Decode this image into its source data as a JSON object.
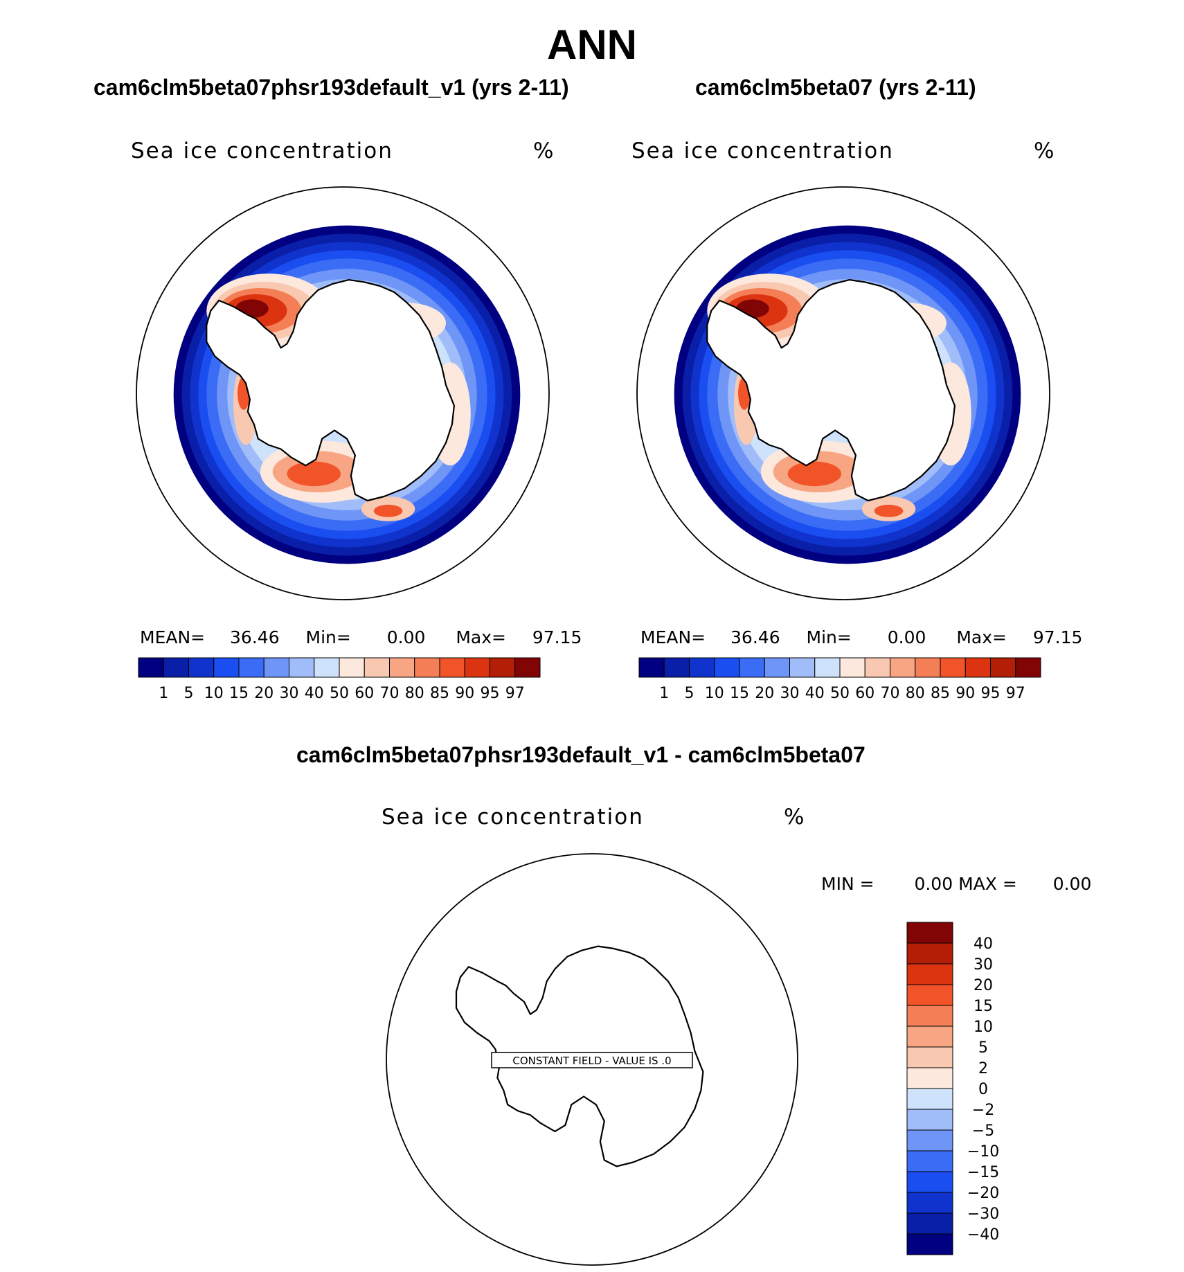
{
  "figure": {
    "title": "ANN",
    "panels": [
      {
        "title": "cam6clm5beta07phsr193default_v1 (yrs 2-11)",
        "variable": "Sea ice concentration",
        "units": "%",
        "stats": {
          "mean_label": "MEAN=",
          "mean": "36.46",
          "min_label": "Min=",
          "min": "0.00",
          "max_label": "Max=",
          "max": "97.15"
        }
      },
      {
        "title": "cam6clm5beta07 (yrs 2-11)",
        "variable": "Sea ice concentration",
        "units": "%",
        "stats": {
          "mean_label": "MEAN=",
          "mean": "36.46",
          "min_label": "Min=",
          "min": "0.00",
          "max_label": "Max=",
          "max": "97.15"
        }
      }
    ],
    "difference": {
      "title": "cam6clm5beta07phsr193default_v1 - cam6clm5beta07",
      "variable": "Sea ice concentration",
      "units": "%",
      "min_label": "MIN =",
      "min": "0.00",
      "max_label": "MAX =",
      "max": "0.00",
      "constant_field_text": "CONSTANT FIELD - VALUE IS .0"
    }
  },
  "chart_data": [
    {
      "type": "heatmap",
      "title": "cam6clm5beta07phsr193default_v1 (yrs 2-11)",
      "variable": "Sea ice concentration",
      "units": "%",
      "projection": "south polar stereographic",
      "stats": {
        "mean": 36.46,
        "min": 0.0,
        "max": 97.15
      },
      "levels": [
        1,
        5,
        10,
        15,
        20,
        30,
        40,
        50,
        60,
        70,
        80,
        85,
        90,
        95,
        97
      ],
      "colors": [
        "#000080",
        "#0a1fa8",
        "#0f33cc",
        "#1a4ef0",
        "#3b6cf5",
        "#6f95f7",
        "#a0bdf9",
        "#cfe2fb",
        "#fce8dc",
        "#f9c8b0",
        "#f7a582",
        "#f47f56",
        "#f2542a",
        "#dc3410",
        "#b21e06",
        "#820505"
      ]
    },
    {
      "type": "heatmap",
      "title": "cam6clm5beta07 (yrs 2-11)",
      "variable": "Sea ice concentration",
      "units": "%",
      "projection": "south polar stereographic",
      "stats": {
        "mean": 36.46,
        "min": 0.0,
        "max": 97.15
      },
      "levels": [
        1,
        5,
        10,
        15,
        20,
        30,
        40,
        50,
        60,
        70,
        80,
        85,
        90,
        95,
        97
      ],
      "colors": [
        "#000080",
        "#0a1fa8",
        "#0f33cc",
        "#1a4ef0",
        "#3b6cf5",
        "#6f95f7",
        "#a0bdf9",
        "#cfe2fb",
        "#fce8dc",
        "#f9c8b0",
        "#f7a582",
        "#f47f56",
        "#f2542a",
        "#dc3410",
        "#b21e06",
        "#820505"
      ]
    },
    {
      "type": "heatmap",
      "title": "cam6clm5beta07phsr193default_v1 - cam6clm5beta07",
      "variable": "Sea ice concentration",
      "units": "%",
      "projection": "south polar stereographic",
      "stats": {
        "min": 0.0,
        "max": 0.0
      },
      "constant_value": 0.0,
      "levels": [
        "40",
        "30",
        "20",
        "15",
        "10",
        "5",
        "2",
        "0",
        "−2",
        "−5",
        "−10",
        "−15",
        "−20",
        "−30",
        "−40"
      ],
      "colors": [
        "#820505",
        "#b21e06",
        "#dc3410",
        "#f2542a",
        "#f47f56",
        "#f7a582",
        "#f9c8b0",
        "#fce8dc",
        "#cfe2fb",
        "#a0bdf9",
        "#6f95f7",
        "#3b6cf5",
        "#1a4ef0",
        "#0f33cc",
        "#0a1fa8",
        "#000080"
      ]
    }
  ]
}
